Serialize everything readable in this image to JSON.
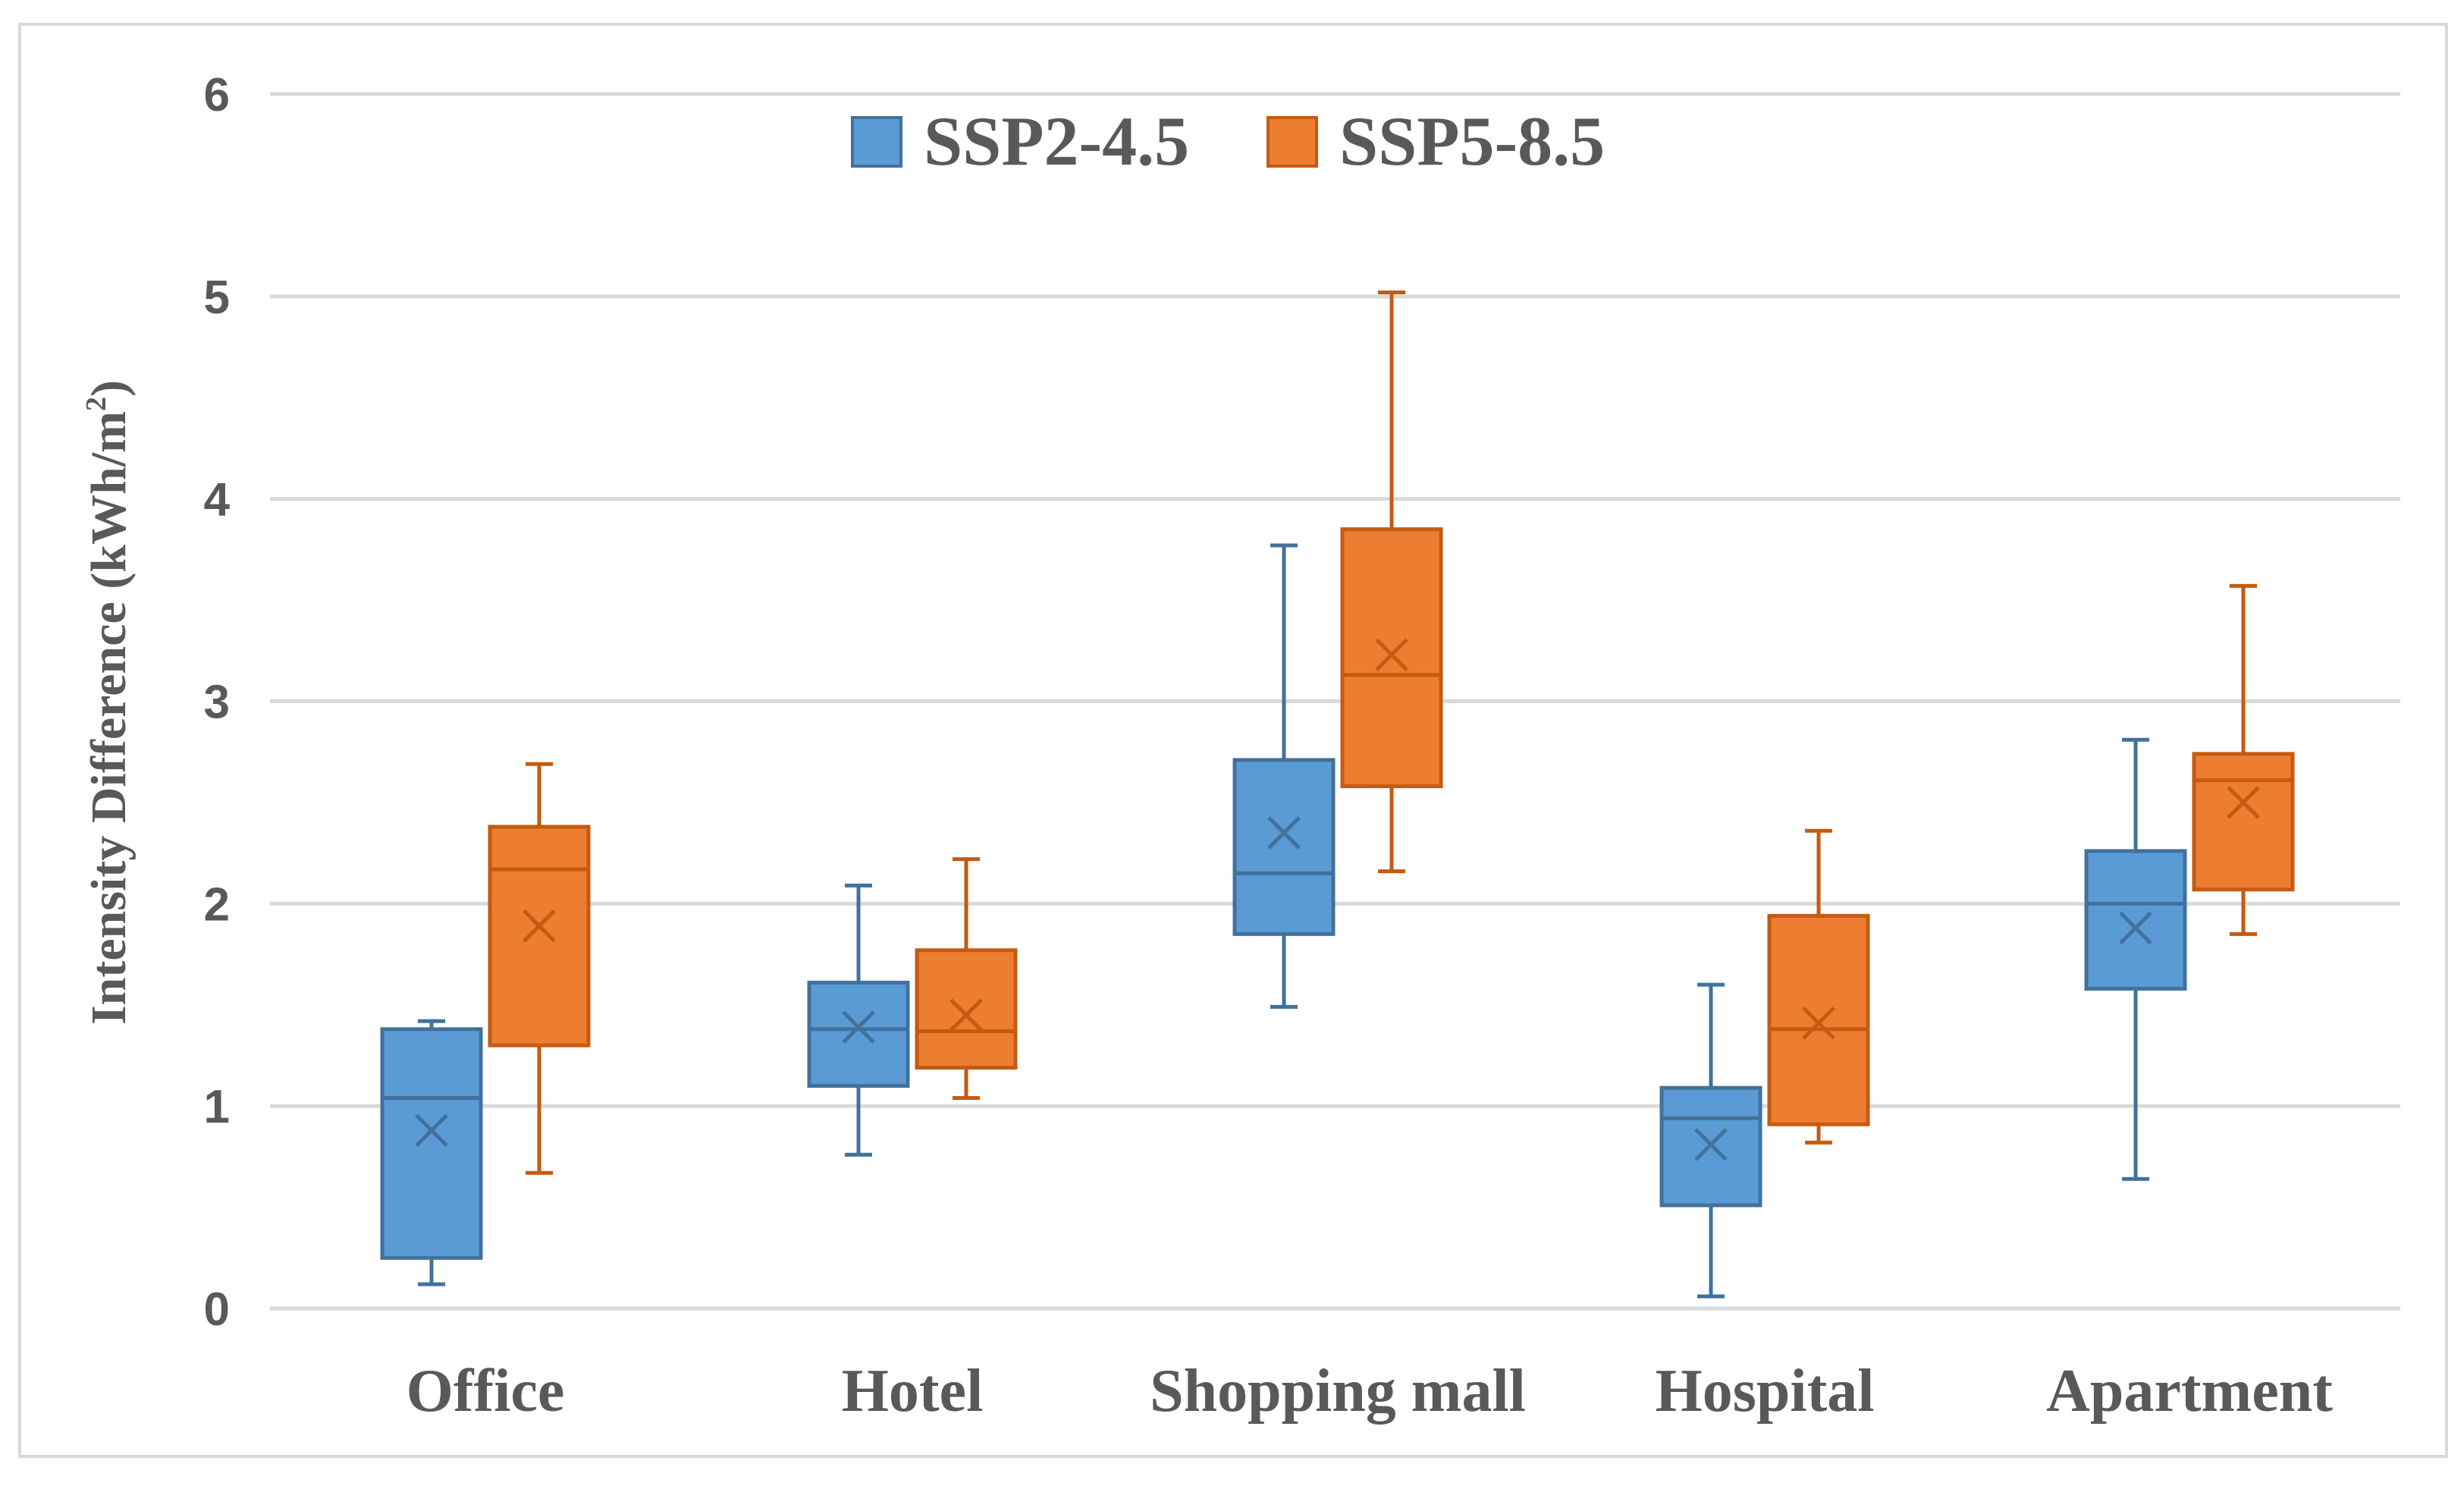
{
  "chart_data": {
    "type": "box",
    "title": "",
    "xlabel": "",
    "ylabel": "Intensity Difference (kWh/m",
    "ylabel_superscript": "2",
    "ylabel_suffix": ")",
    "ylim": [
      0,
      6
    ],
    "yticks": [
      "0",
      "1",
      "2",
      "3",
      "4",
      "5",
      "6"
    ],
    "grid": true,
    "legend_position": "top-center",
    "categories": [
      "Office",
      "Hotel",
      "Shopping mall",
      "Hospital",
      "Apartment"
    ],
    "series": [
      {
        "name": "SSP2-4.5",
        "color": "#5B9BD5",
        "edge_color": "#41719C",
        "boxes": [
          {
            "min": 0.12,
            "q1": 0.25,
            "median": 1.04,
            "q3": 1.38,
            "max": 1.42,
            "mean": 0.88
          },
          {
            "min": 0.76,
            "q1": 1.1,
            "median": 1.38,
            "q3": 1.61,
            "max": 2.09,
            "mean": 1.39
          },
          {
            "min": 1.49,
            "q1": 1.85,
            "median": 2.15,
            "q3": 2.71,
            "max": 3.77,
            "mean": 2.35
          },
          {
            "min": 0.06,
            "q1": 0.51,
            "median": 0.94,
            "q3": 1.09,
            "max": 1.6,
            "mean": 0.81
          },
          {
            "min": 0.64,
            "q1": 1.58,
            "median": 2.0,
            "q3": 2.26,
            "max": 2.81,
            "mean": 1.88
          }
        ]
      },
      {
        "name": "SSP5-8.5",
        "color": "#ED7D31",
        "edge_color": "#C55A11",
        "boxes": [
          {
            "min": 0.67,
            "q1": 1.3,
            "median": 2.17,
            "q3": 2.38,
            "max": 2.69,
            "mean": 1.89
          },
          {
            "min": 1.04,
            "q1": 1.19,
            "median": 1.37,
            "q3": 1.77,
            "max": 2.22,
            "mean": 1.45
          },
          {
            "min": 2.16,
            "q1": 2.58,
            "median": 3.13,
            "q3": 3.85,
            "max": 5.02,
            "mean": 3.23
          },
          {
            "min": 0.82,
            "q1": 0.91,
            "median": 1.38,
            "q3": 1.94,
            "max": 2.36,
            "mean": 1.41
          },
          {
            "min": 1.85,
            "q1": 2.07,
            "median": 2.61,
            "q3": 2.74,
            "max": 3.57,
            "mean": 2.5
          }
        ]
      }
    ]
  },
  "colors": {
    "grid": "#D9D9D9",
    "axis_text": "#595959",
    "frame": "#D9D9D9",
    "background": "#FFFFFF"
  }
}
